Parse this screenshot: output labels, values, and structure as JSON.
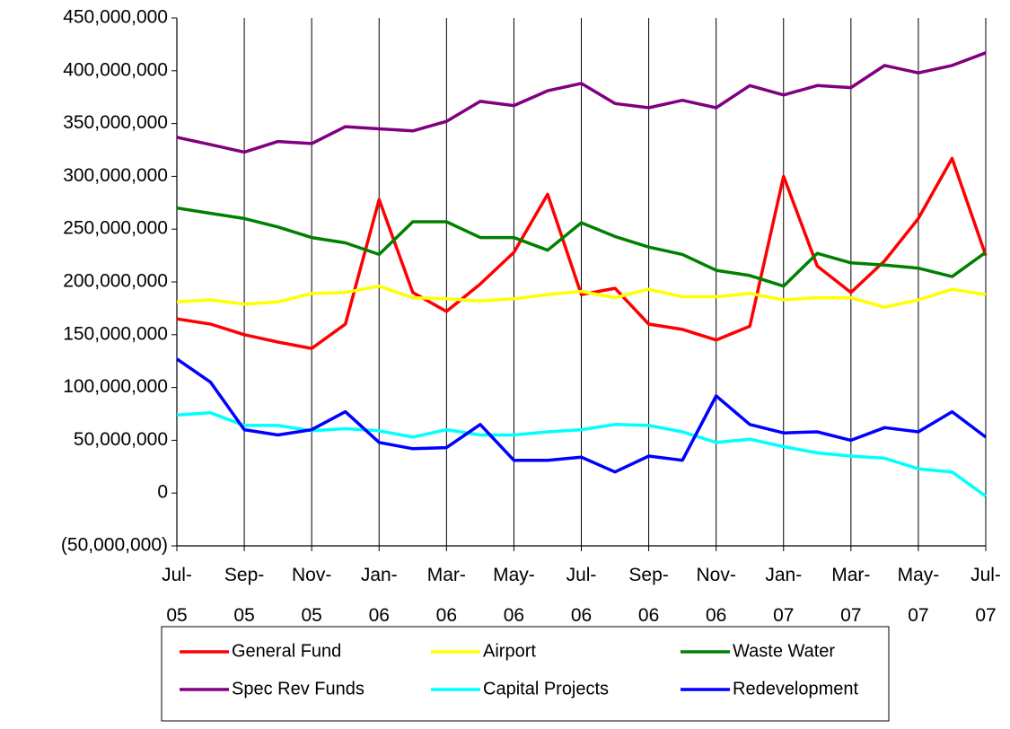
{
  "chart_data": {
    "type": "line",
    "categories": [
      "Jul-05",
      null,
      "Sep-05",
      null,
      "Nov-05",
      null,
      "Jan-06",
      null,
      "Mar-06",
      null,
      "May-06",
      null,
      "Jul-06",
      null,
      "Sep-06",
      null,
      "Nov-06",
      null,
      "Jan-07",
      null,
      "Mar-07",
      null,
      "May-07",
      null,
      "Jul-07"
    ],
    "ylim": [
      -50000000,
      450000000
    ],
    "yticks": [
      {
        "value": -50000000,
        "label": "(50,000,000)"
      },
      0,
      {
        "value": 50000000,
        "label": "50,000,000"
      },
      {
        "value": 100000000,
        "label": "100,000,000"
      },
      {
        "value": 150000000,
        "label": "150,000,000"
      },
      {
        "value": 200000000,
        "label": "200,000,000"
      },
      {
        "value": 250000000,
        "label": "250,000,000"
      },
      {
        "value": 300000000,
        "label": "300,000,000"
      },
      {
        "value": 350000000,
        "label": "350,000,000"
      },
      {
        "value": 400000000,
        "label": "400,000,000"
      },
      {
        "value": 450000000,
        "label": "450,000,000"
      }
    ],
    "grid": "x",
    "series": [
      {
        "name": "General Fund",
        "color": "#ff0000",
        "values": [
          165000000,
          160000000,
          150000000,
          143000000,
          137000000,
          160000000,
          278000000,
          190000000,
          172000000,
          198000000,
          228000000,
          283000000,
          188000000,
          194000000,
          160000000,
          155000000,
          145000000,
          158000000,
          300000000,
          215000000,
          190000000,
          220000000,
          260000000,
          317000000,
          225000000
        ]
      },
      {
        "name": "Airport",
        "color": "#ffff00",
        "values": [
          181000000,
          183000000,
          179000000,
          181000000,
          189000000,
          190000000,
          196000000,
          185000000,
          184000000,
          182000000,
          184000000,
          188000000,
          191000000,
          185000000,
          193000000,
          186000000,
          186000000,
          189000000,
          183000000,
          185000000,
          185000000,
          176000000,
          183000000,
          193000000,
          188000000
        ]
      },
      {
        "name": "Waste Water",
        "color": "#008000",
        "values": [
          270000000,
          265000000,
          260000000,
          252000000,
          242000000,
          237000000,
          226000000,
          257000000,
          257000000,
          242000000,
          242000000,
          230000000,
          256000000,
          243000000,
          233000000,
          226000000,
          211000000,
          206000000,
          196000000,
          227000000,
          218000000,
          216000000,
          213000000,
          205000000,
          228000000
        ]
      },
      {
        "name": "Spec Rev Funds",
        "color": "#800080",
        "values": [
          337000000,
          330000000,
          323000000,
          333000000,
          331000000,
          347000000,
          345000000,
          343000000,
          352000000,
          371000000,
          367000000,
          381000000,
          388000000,
          369000000,
          365000000,
          372000000,
          365000000,
          386000000,
          377000000,
          386000000,
          384000000,
          405000000,
          398000000,
          405000000,
          417000000
        ]
      },
      {
        "name": "Capital Projects",
        "color": "#00ffff",
        "values": [
          74000000,
          76000000,
          64000000,
          64000000,
          59000000,
          61000000,
          59000000,
          53000000,
          60000000,
          55000000,
          55000000,
          58000000,
          60000000,
          65000000,
          64000000,
          58000000,
          48000000,
          51000000,
          44000000,
          38000000,
          35000000,
          33000000,
          23000000,
          20000000,
          -3000000
        ]
      },
      {
        "name": "Redevelopment",
        "color": "#0000ff",
        "values": [
          127000000,
          105000000,
          60000000,
          55000000,
          60000000,
          77000000,
          48000000,
          42000000,
          43000000,
          65000000,
          31000000,
          31000000,
          34000000,
          20000000,
          35000000,
          31000000,
          92000000,
          65000000,
          57000000,
          58000000,
          50000000,
          62000000,
          58000000,
          77000000,
          53000000
        ]
      }
    ]
  }
}
